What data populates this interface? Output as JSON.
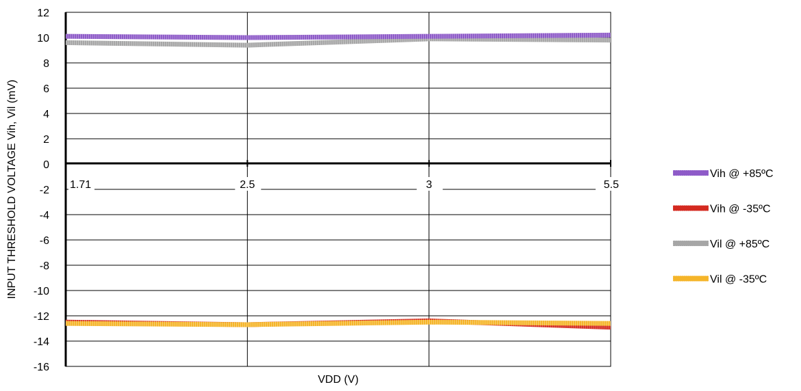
{
  "chart_data": {
    "type": "line",
    "title": "",
    "xlabel": "VDD (V)",
    "ylabel": "INPUT THRESHOLD VOLTAGE Vih, Vil (mV)",
    "categories": [
      "1.71",
      "2.5",
      "3",
      "5.5"
    ],
    "ylim": [
      -16,
      12
    ],
    "yticks": [
      12,
      10,
      8,
      6,
      4,
      2,
      0,
      -2,
      -4,
      -6,
      -8,
      -10,
      -12,
      -14,
      -16
    ],
    "grid": true,
    "legend_position": "right",
    "series": [
      {
        "name": "Vih @ +85ºC",
        "color": "#8e5bc8",
        "values": [
          10.1,
          10.0,
          10.1,
          10.2
        ]
      },
      {
        "name": "Vih @ -35ºC",
        "color": "#d42a20",
        "values": [
          -12.5,
          -12.7,
          -12.4,
          -12.9
        ]
      },
      {
        "name": "Vil @ +85ºC",
        "color": "#a6a6a6",
        "values": [
          9.6,
          9.4,
          9.9,
          9.8
        ]
      },
      {
        "name": "Vil @ -35ºC",
        "color": "#f5b52a",
        "values": [
          -12.6,
          -12.7,
          -12.5,
          -12.6
        ]
      }
    ]
  }
}
